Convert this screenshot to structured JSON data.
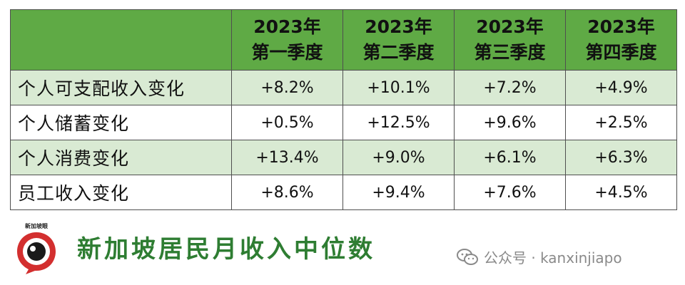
{
  "chart_data": {
    "type": "table",
    "columns": [
      {
        "year": "2023年",
        "quarter": "第一季度"
      },
      {
        "year": "2023年",
        "quarter": "第二季度"
      },
      {
        "year": "2023年",
        "quarter": "第三季度"
      },
      {
        "year": "2023年",
        "quarter": "第四季度"
      }
    ],
    "rows": [
      {
        "label": "个人可支配收入变化",
        "values": [
          "+8.2%",
          "+10.1%",
          "+7.2%",
          "+4.9%"
        ]
      },
      {
        "label": "个人储蓄变化",
        "values": [
          "+0.5%",
          "+12.5%",
          "+9.6%",
          "+2.5%"
        ]
      },
      {
        "label": "个人消费变化",
        "values": [
          "+13.4%",
          "+9.0%",
          "+6.1%",
          "+6.3%"
        ]
      },
      {
        "label": "员工收入变化",
        "values": [
          "+8.6%",
          "+9.4%",
          "+7.6%",
          "+4.5%"
        ]
      }
    ]
  },
  "brand": {
    "logo_text": "新加坡眼",
    "title": "新加坡居民月收入中位数"
  },
  "watermark": {
    "text": "公众号 · kanxinjiapo"
  },
  "colors": {
    "header_bg": "#5faa45",
    "stripe_bg": "#d9ead3",
    "brand_green": "#2e7d32",
    "logo_red": "#d32f2f"
  }
}
